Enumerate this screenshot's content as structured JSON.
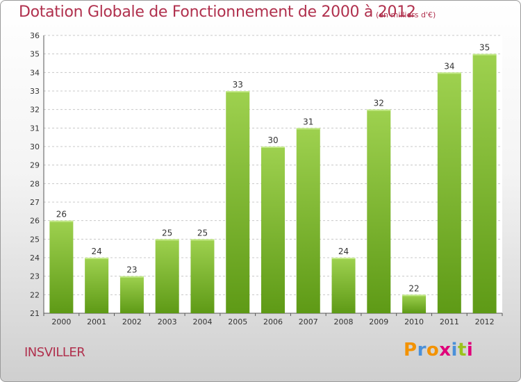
{
  "header": {
    "title": "Dotation Globale de Fonctionnement de 2000 à 2012",
    "unit": "(en milliers d'€)"
  },
  "footer": {
    "commune": "INSVILLER",
    "logo": "Proxiti"
  },
  "colors": {
    "title": "#b0304d",
    "bar_light": "#9ed14f",
    "bar_dark": "#5e9a16",
    "logo_letters": [
      "#f39200",
      "#4a90d9",
      "#f39200",
      "#e0007a",
      "#4a90d9",
      "#9ac31c",
      "#e0007a"
    ]
  },
  "chart_data": {
    "type": "bar",
    "title": "Dotation Globale de Fonctionnement de 2000 à 2012",
    "subtitle": "(en milliers d'€)",
    "categories": [
      "2000",
      "2001",
      "2002",
      "2003",
      "2004",
      "2005",
      "2006",
      "2007",
      "2008",
      "2009",
      "2010",
      "2011",
      "2012"
    ],
    "values": [
      26,
      24,
      23,
      25,
      25,
      33,
      30,
      31,
      24,
      32,
      22,
      34,
      35
    ],
    "ylim": [
      21,
      36
    ],
    "yticks": [
      21,
      22,
      23,
      24,
      25,
      26,
      27,
      28,
      29,
      30,
      31,
      32,
      33,
      34,
      35,
      36
    ],
    "grid": true,
    "xlabel": "",
    "ylabel": ""
  }
}
